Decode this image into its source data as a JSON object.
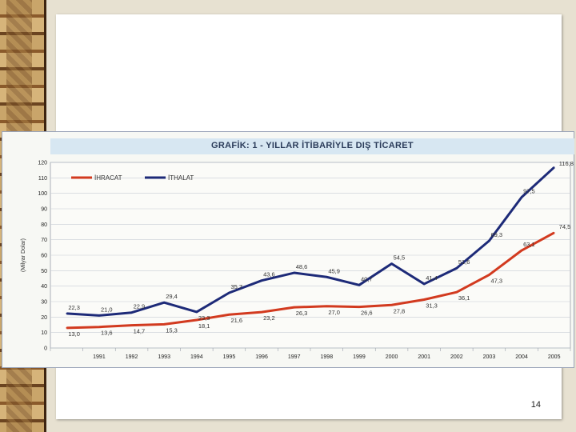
{
  "slide": {
    "page_number": "14"
  },
  "colors": {
    "ihracat": "#d23a1f",
    "ithalat": "#1d2a78",
    "title_bar": "#d7e7f2",
    "gridline": "#c8ccd4"
  },
  "chart_data": {
    "type": "line",
    "title": "GRAFİK: 1 - YILLAR İTİBARİYLE DIŞ TİCARET",
    "xlabel": "",
    "ylabel": "(Milyar Dolar)",
    "ylim": [
      0,
      120
    ],
    "yticks": [
      0,
      10,
      20,
      30,
      40,
      50,
      60,
      70,
      80,
      90,
      100,
      110,
      120
    ],
    "legend_position": "top-left",
    "grid": true,
    "categories": [
      "",
      "1991",
      "1992",
      "1993",
      "1994",
      "1995",
      "1996",
      "1997",
      "1998",
      "1999",
      "2000",
      "2001",
      "2002",
      "2003",
      "2004",
      "2005"
    ],
    "series": [
      {
        "name": "İHRACAT",
        "color": "#d23a1f",
        "values": [
          13.0,
          13.6,
          14.7,
          15.3,
          18.1,
          21.6,
          23.2,
          26.3,
          27.0,
          26.6,
          27.8,
          31.3,
          36.1,
          47.3,
          63.1,
          74.5
        ],
        "labels": [
          "13,0",
          "13,6",
          "14,7",
          "15,3",
          "18,1",
          "21,6",
          "23,2",
          "26,3",
          "27,0",
          "26,6",
          "27,8",
          "31,3",
          "36,1",
          "47,3",
          "63,1",
          "74,5"
        ]
      },
      {
        "name": "İTHALAT",
        "color": "#1d2a78",
        "values": [
          22.3,
          21.0,
          22.9,
          29.4,
          23.3,
          35.7,
          43.6,
          48.6,
          45.9,
          40.7,
          54.5,
          41.4,
          51.6,
          69.3,
          97.5,
          116.8
        ],
        "labels": [
          "22,3",
          "21,0",
          "22,9",
          "29,4",
          "23,3",
          "35,7",
          "43,6",
          "48,6",
          "45,9",
          "40,7",
          "54,5",
          "41,4",
          "51,6",
          "69,3",
          "97,5",
          "116,8"
        ]
      }
    ]
  }
}
